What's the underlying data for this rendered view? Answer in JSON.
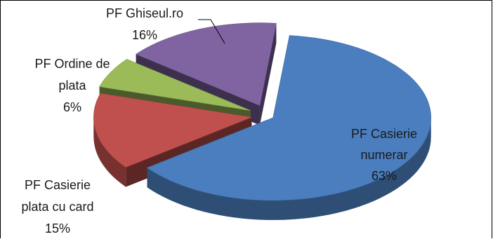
{
  "chart_data": {
    "type": "pie",
    "style": "3d-exploded",
    "title": "",
    "slices": [
      {
        "name": "PF Casierie numerar",
        "label_lines": [
          "PF Casierie",
          "numerar"
        ],
        "value": 63,
        "value_label": "63%",
        "color": "#4a7ebf"
      },
      {
        "name": "PF Casierie plata cu card",
        "label_lines": [
          "PF Casierie",
          "plata cu card"
        ],
        "value": 15,
        "value_label": "15%",
        "color": "#c0504d"
      },
      {
        "name": "PF Ordine de plata",
        "label_lines": [
          "PF Ordine de",
          "plata"
        ],
        "value": 6,
        "value_label": "6%",
        "color": "#9bbb59"
      },
      {
        "name": "PF Ghiseul.ro",
        "label_lines": [
          "PF Ghiseul.ro"
        ],
        "value": 16,
        "value_label": "16%",
        "color": "#8064a2"
      }
    ]
  }
}
